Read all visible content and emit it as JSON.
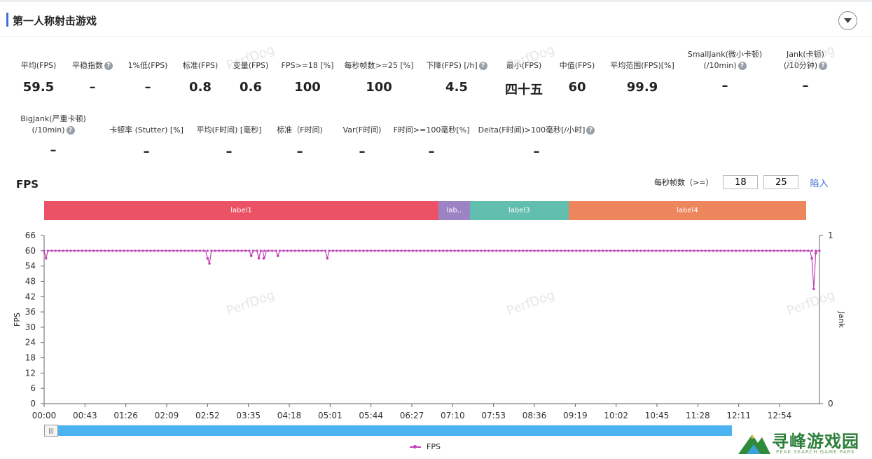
{
  "header": {
    "title": "第一人称射击游戏"
  },
  "metrics_row1": [
    {
      "label": "平均(FPS)",
      "value": "59.5",
      "help": false
    },
    {
      "label": "平稳指数",
      "value": "–",
      "help": true
    },
    {
      "label": "1%低(FPS)",
      "value": "–",
      "help": false
    },
    {
      "label": "标准(FPS)",
      "value": "0.8",
      "help": false
    },
    {
      "label": "变量(FPS)",
      "value": "0.6",
      "help": false
    },
    {
      "label": "FPS>=18 [%]",
      "value": "100",
      "help": false
    },
    {
      "label": "每秒帧数>=25 [%]",
      "value": "100",
      "help": false
    },
    {
      "label": "下降(FPS) [/h]",
      "value": "4.5",
      "help": true
    },
    {
      "label": "最小(FPS)",
      "value": "四十五",
      "help": false
    },
    {
      "label": "中值(FPS)",
      "value": "60",
      "help": false
    },
    {
      "label": "平均范围(FPS)[%]",
      "value": "99.9",
      "help": false
    },
    {
      "label": "SmallJank(微小卡顿)",
      "label2": "(/10min)",
      "value": "–",
      "help": true
    },
    {
      "label": "Jank(卡顿)",
      "label2": "(/10分钟)",
      "value": "–",
      "help": true
    }
  ],
  "metrics_row2": [
    {
      "label": "BigJank(严重卡顿)",
      "label2": "(/10min)",
      "value": "–",
      "help": true
    },
    {
      "label": "卡顿率 (Stutter) [%]",
      "value": "–",
      "help": false
    },
    {
      "label": "平均(F时间) [毫秒]",
      "value": "–",
      "help": false
    },
    {
      "label": "标准（F时间)",
      "value": "–",
      "help": false
    },
    {
      "label": "Var(F时间)",
      "value": "–",
      "help": false
    },
    {
      "label": "F时间>=100毫秒[%]",
      "value": "–",
      "help": false
    },
    {
      "label": "Delta(F时间)>100毫秒[/小时]",
      "value": "–",
      "help": true
    }
  ],
  "watermark": "PerfDog",
  "chart_controls": {
    "title": "FPS",
    "threshold_label": "每秒帧数（>=）",
    "threshold1": "18",
    "threshold2": "25",
    "apply_label": "陷入"
  },
  "labels": [
    {
      "name": "label1",
      "color": "#ec5266"
    },
    {
      "name": "lab..",
      "color": "#9b83c4"
    },
    {
      "name": "label3",
      "color": "#62bfb0"
    },
    {
      "name": "label4",
      "color": "#ed855d"
    }
  ],
  "legend": {
    "fps": "FPS"
  },
  "logo": {
    "text": "寻峰游戏园",
    "sub": "PEAK SEARCH GAME PARK"
  },
  "chart_data": {
    "type": "line",
    "title": "",
    "ylabel": "FPS",
    "y2label": "Jank",
    "ylim": [
      0,
      66
    ],
    "yticks": [
      0,
      6,
      12,
      18,
      24,
      30,
      36,
      42,
      48,
      54,
      60,
      66
    ],
    "y2lim": [
      0,
      1
    ],
    "y2ticks": [
      0,
      1
    ],
    "xlabels": [
      "00:00",
      "00:43",
      "01:26",
      "02:09",
      "02:52",
      "03:35",
      "04:18",
      "05:01",
      "05:44",
      "06:27",
      "07:10",
      "07:53",
      "08:36",
      "09:19",
      "10:02",
      "10:45",
      "11:28",
      "12:11",
      "12:54"
    ],
    "x_range_seconds": [
      0,
      816
    ],
    "series": [
      {
        "name": "FPS",
        "color": "#c144b8",
        "baseline": 60,
        "dips": [
          {
            "t": 2,
            "v": 57
          },
          {
            "t": 172,
            "v": 57
          },
          {
            "t": 174,
            "v": 55
          },
          {
            "t": 218,
            "v": 58
          },
          {
            "t": 226,
            "v": 57
          },
          {
            "t": 231,
            "v": 57
          },
          {
            "t": 246,
            "v": 58
          },
          {
            "t": 298,
            "v": 57
          },
          {
            "t": 808,
            "v": 57
          },
          {
            "t": 810,
            "v": 45
          },
          {
            "t": 812,
            "v": 59
          }
        ]
      }
    ],
    "label_segments": [
      {
        "name": "label1",
        "start": 0,
        "end": 415
      },
      {
        "name": "lab..",
        "start": 415,
        "end": 448
      },
      {
        "name": "label3",
        "start": 448,
        "end": 552
      },
      {
        "name": "label4",
        "start": 552,
        "end": 802
      }
    ]
  }
}
